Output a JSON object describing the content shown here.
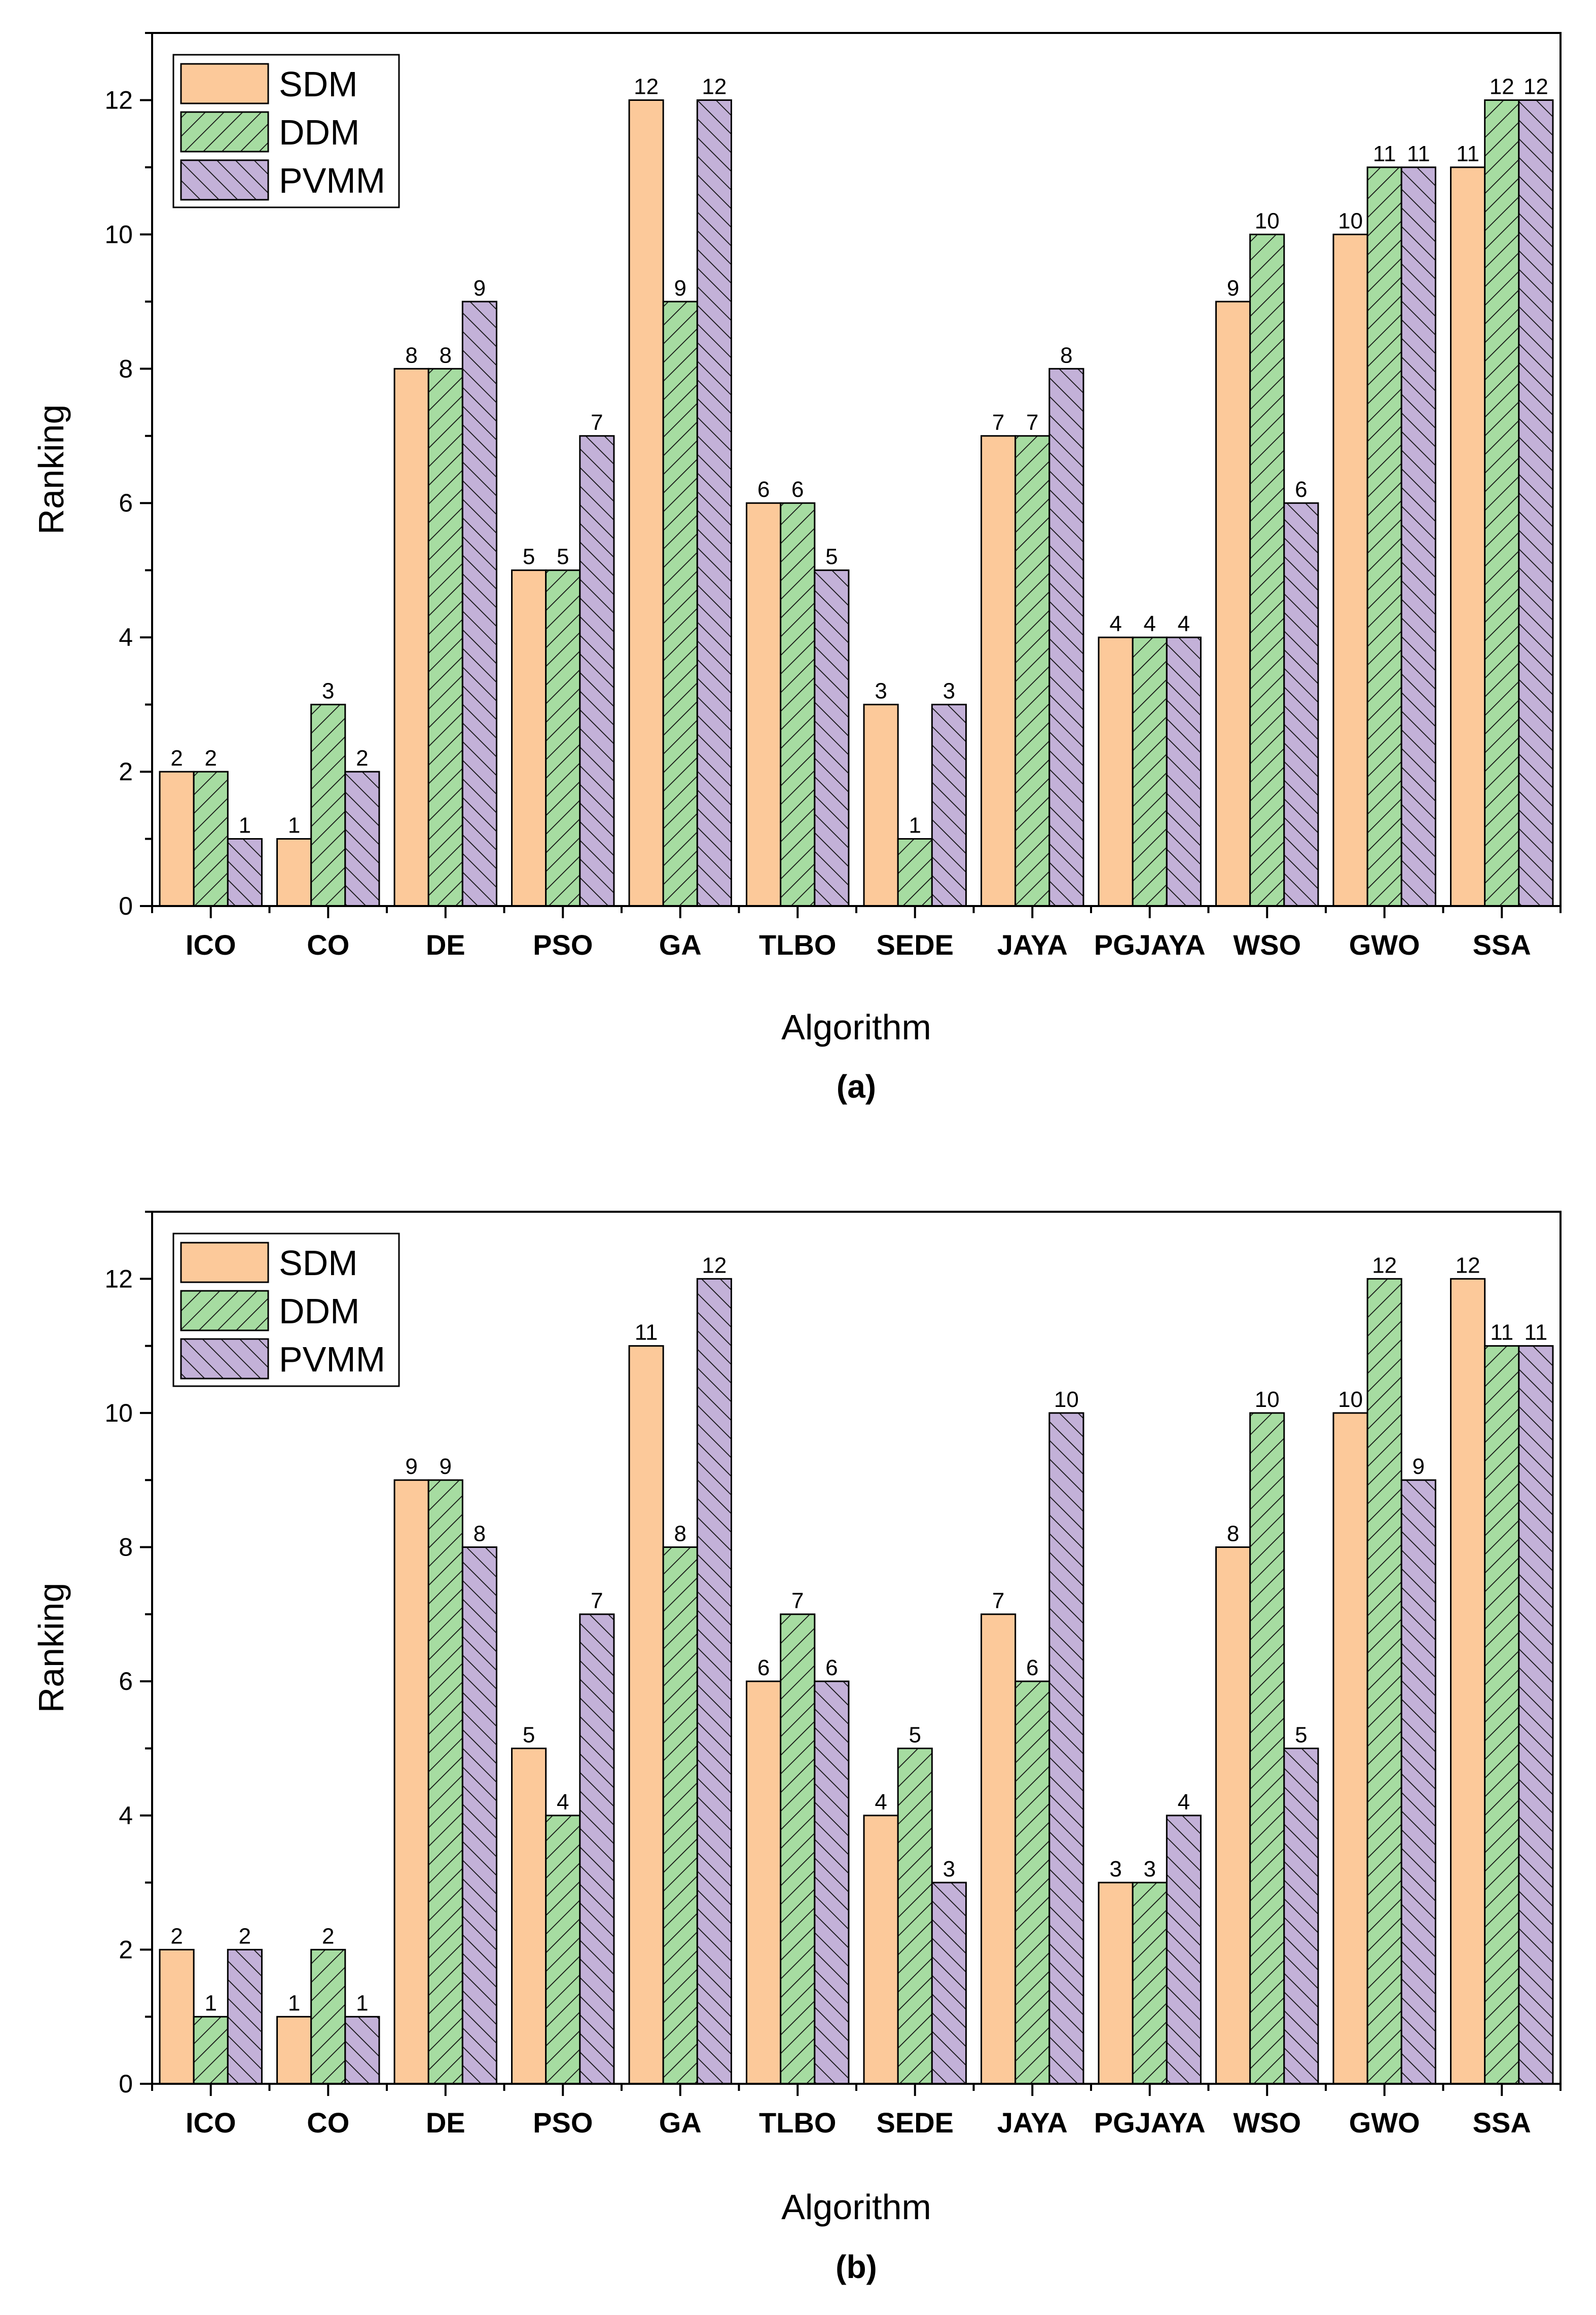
{
  "colors": {
    "SDM": "#fcc99a",
    "DDM": "#a6dca1",
    "PVMM": "#c3b1d8",
    "hatch": "#111111",
    "axis": "#000000"
  },
  "chart_data": [
    {
      "type": "bar",
      "panel_label": "(a)",
      "xlabel": "Algorithm",
      "ylabel": "Ranking",
      "ylim": [
        0,
        13
      ],
      "yticks": [
        0,
        2,
        4,
        6,
        8,
        10,
        12
      ],
      "legend_placement": "top-left",
      "grid": false,
      "categories": [
        "ICO",
        "CO",
        "DE",
        "PSO",
        "GA",
        "TLBO",
        "SEDE",
        "JAYA",
        "PGJAYA",
        "WSO",
        "GWO",
        "SSA"
      ],
      "series": [
        {
          "name": "SDM",
          "pattern": "solid",
          "values": [
            2,
            1,
            8,
            5,
            12,
            6,
            3,
            7,
            4,
            9,
            10,
            11
          ]
        },
        {
          "name": "DDM",
          "pattern": "forward-diagonal",
          "values": [
            2,
            3,
            8,
            5,
            9,
            6,
            1,
            7,
            4,
            10,
            11,
            12
          ]
        },
        {
          "name": "PVMM",
          "pattern": "back-diagonal",
          "values": [
            1,
            2,
            9,
            7,
            12,
            5,
            3,
            8,
            4,
            6,
            11,
            12
          ]
        }
      ]
    },
    {
      "type": "bar",
      "panel_label": "(b)",
      "xlabel": "Algorithm",
      "ylabel": "Ranking",
      "ylim": [
        0,
        13
      ],
      "yticks": [
        0,
        2,
        4,
        6,
        8,
        10,
        12
      ],
      "legend_placement": "top-left",
      "grid": false,
      "categories": [
        "ICO",
        "CO",
        "DE",
        "PSO",
        "GA",
        "TLBO",
        "SEDE",
        "JAYA",
        "PGJAYA",
        "WSO",
        "GWO",
        "SSA"
      ],
      "series": [
        {
          "name": "SDM",
          "pattern": "solid",
          "values": [
            2,
            1,
            9,
            5,
            11,
            6,
            4,
            7,
            3,
            8,
            10,
            12
          ]
        },
        {
          "name": "DDM",
          "pattern": "forward-diagonal",
          "values": [
            1,
            2,
            9,
            4,
            8,
            7,
            5,
            6,
            3,
            10,
            12,
            11
          ]
        },
        {
          "name": "PVMM",
          "pattern": "back-diagonal",
          "values": [
            2,
            1,
            8,
            7,
            12,
            6,
            3,
            10,
            4,
            5,
            9,
            11
          ]
        }
      ]
    }
  ]
}
